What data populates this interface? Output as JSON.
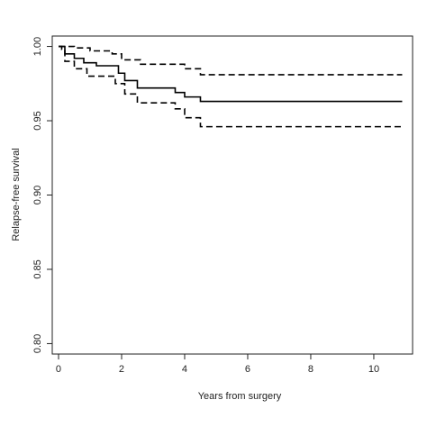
{
  "chart_data": {
    "type": "step",
    "x_label": "Years from surgery",
    "y_label": "Relapse-free survival",
    "xlim": [
      -0.2,
      11.23
    ],
    "ylim": [
      0.793,
      1.007
    ],
    "xticks": [
      0,
      2,
      4,
      6,
      8,
      10
    ],
    "yticks": [
      {
        "value": 1,
        "label": "1.00"
      },
      0.95,
      {
        "value": 0.9,
        "label": "0.90"
      },
      0.85,
      {
        "value": 0.8,
        "label": "0.80"
      }
    ],
    "series": [
      {
        "color": "#000000",
        "dashed": false,
        "x": [
          0,
          0.2,
          0.5,
          0.8,
          1.2,
          1.9,
          2.1,
          2.5,
          3.7,
          4.0,
          4.5,
          10.9
        ],
        "values": [
          1.0,
          0.995,
          0.992,
          0.989,
          0.987,
          0.982,
          0.977,
          0.972,
          0.969,
          0.966,
          0.963,
          0.963
        ]
      },
      {
        "color": "#000000",
        "dashed": true,
        "x": [
          0,
          0.5,
          1.0,
          1.7,
          2.0,
          2.6,
          4.0,
          4.5,
          10.9
        ],
        "values": [
          1.0,
          0.999,
          0.997,
          0.995,
          0.991,
          0.988,
          0.985,
          0.981,
          0.981
        ]
      },
      {
        "color": "#000000",
        "dashed": true,
        "x": [
          0,
          0.1,
          0.2,
          0.5,
          0.9,
          1.8,
          2.1,
          2.5,
          3.7,
          4.0,
          4.5,
          10.9
        ],
        "values": [
          1.0,
          0.998,
          0.99,
          0.985,
          0.98,
          0.975,
          0.968,
          0.962,
          0.958,
          0.952,
          0.946,
          0.946
        ]
      }
    ]
  }
}
